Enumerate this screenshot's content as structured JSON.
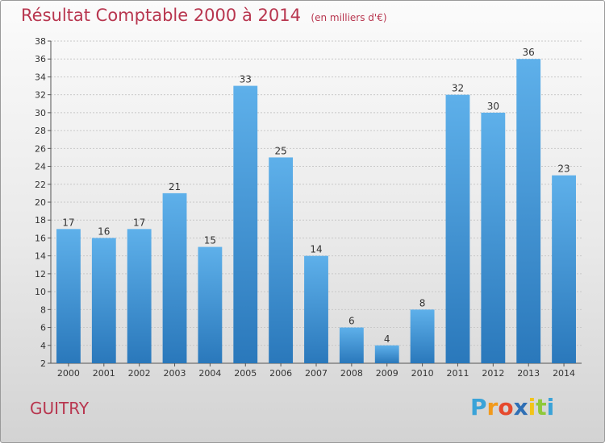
{
  "header": {
    "title": "Résultat Comptable 2000 à 2014",
    "subtitle": "(en milliers d'€)"
  },
  "commune": "GUITRY",
  "logo": {
    "letters": [
      "P",
      "r",
      "o",
      "x",
      "i",
      "t",
      "i"
    ],
    "colors": [
      "#3aa3d8",
      "#f29a1c",
      "#e64a2e",
      "#2f6fb5",
      "#f2c419",
      "#8fc93a",
      "#3aa3d8"
    ]
  },
  "colors": {
    "bar_light": "#5eb0ea",
    "bar_dark": "#2a78bb",
    "title": "#b8364f"
  },
  "chart_data": {
    "type": "bar",
    "categories": [
      "2000",
      "2001",
      "2002",
      "2003",
      "2004",
      "2005",
      "2006",
      "2007",
      "2008",
      "2009",
      "2010",
      "2011",
      "2012",
      "2013",
      "2014"
    ],
    "values": [
      17,
      16,
      17,
      21,
      15,
      33,
      25,
      14,
      6,
      4,
      8,
      32,
      30,
      36,
      23
    ],
    "ylim": [
      2,
      38
    ],
    "yticks": [
      2,
      4,
      6,
      8,
      10,
      12,
      14,
      16,
      18,
      20,
      22,
      24,
      26,
      28,
      30,
      32,
      34,
      36,
      38
    ],
    "grid": true,
    "title": "Résultat Comptable 2000 à 2014",
    "xlabel": "",
    "ylabel": ""
  }
}
